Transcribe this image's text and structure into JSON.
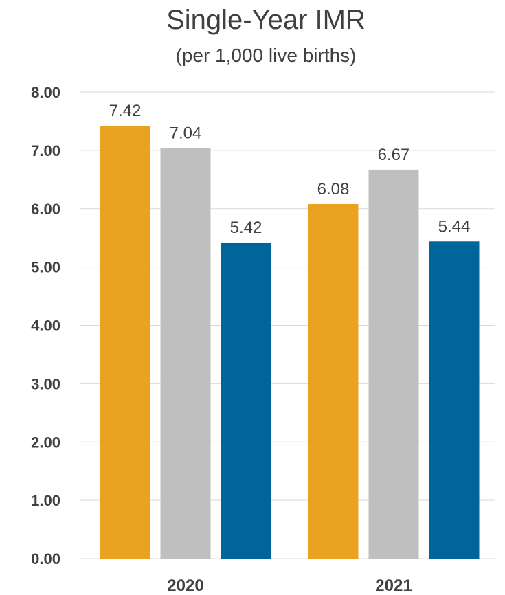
{
  "chart_data": {
    "type": "bar",
    "title": "Single-Year IMR",
    "subtitle": "(per 1,000 live births)",
    "xlabel": "",
    "ylabel": "",
    "categories": [
      "2020",
      "2021"
    ],
    "series": [
      {
        "values": [
          7.42,
          6.08
        ],
        "color": "#E9A320"
      },
      {
        "values": [
          7.04,
          6.67
        ],
        "color": "#BFBFBF"
      },
      {
        "values": [
          5.42,
          5.44
        ],
        "color": "#00669A"
      }
    ],
    "ylim": [
      0,
      8
    ],
    "yticks": [
      "0.00",
      "1.00",
      "2.00",
      "3.00",
      "4.00",
      "5.00",
      "6.00",
      "7.00",
      "8.00"
    ],
    "data_labels": [
      [
        "7.42",
        "6.08"
      ],
      [
        "7.04",
        "6.67"
      ],
      [
        "5.42",
        "5.44"
      ]
    ],
    "grid": true,
    "legend": "none"
  }
}
